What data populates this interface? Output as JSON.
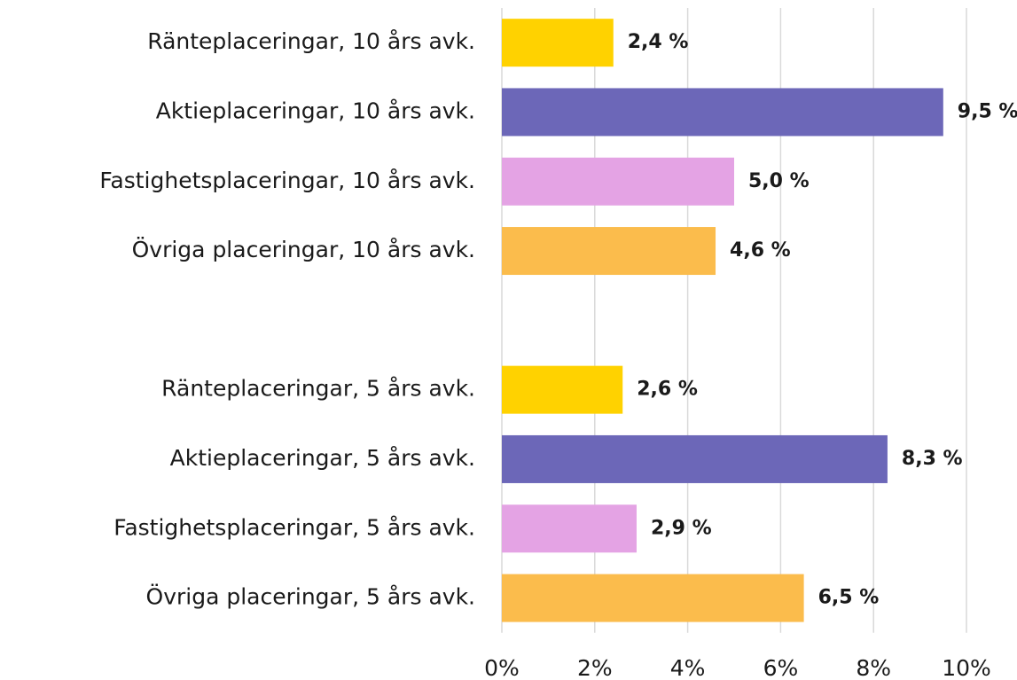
{
  "chart_data": {
    "type": "bar",
    "orientation": "horizontal",
    "categories": [
      "Ränteplaceringar, 10 års avk.",
      "Aktieplaceringar, 10 års avk.",
      "Fastighetsplaceringar, 10 års avk.",
      "Övriga placeringar, 10 års avk.",
      null,
      "Ränteplaceringar, 5 års avk.",
      "Aktieplaceringar, 5 års avk.",
      "Fastighetsplaceringar, 5 års avk.",
      "Övriga placeringar, 5 års avk."
    ],
    "values": [
      2.4,
      9.5,
      5.0,
      4.6,
      null,
      2.6,
      8.3,
      2.9,
      6.5
    ],
    "value_labels": [
      "2,4 %",
      "9,5 %",
      "5,0 %",
      "4,6 %",
      null,
      "2,6 %",
      "8,3 %",
      "2,9 %",
      "6,5 %"
    ],
    "colors": [
      "#ffd200",
      "#6c67b8",
      "#e4a3e4",
      "#fbbc4c",
      null,
      "#ffd200",
      "#6c67b8",
      "#e4a3e4",
      "#fbbc4c"
    ],
    "xlim": [
      0,
      10
    ],
    "xticks": [
      {
        "value": 0,
        "label": "0%"
      },
      {
        "value": 2,
        "label": "2%"
      },
      {
        "value": 4,
        "label": "4%"
      },
      {
        "value": 6,
        "label": "6%"
      },
      {
        "value": 8,
        "label": "8%"
      },
      {
        "value": 10,
        "label": "10%"
      }
    ],
    "grid": true
  }
}
